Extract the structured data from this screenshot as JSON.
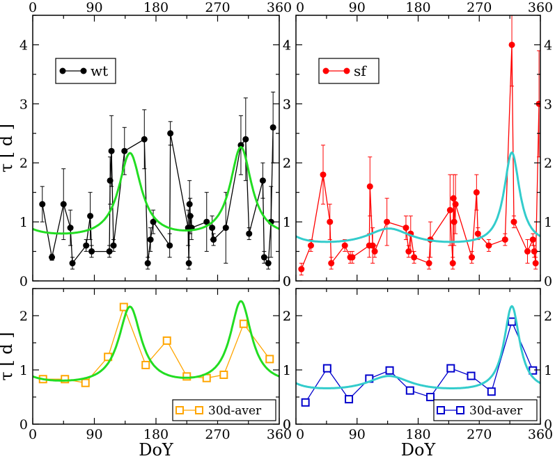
{
  "chart_data": [
    {
      "type": "scatter",
      "panel": "top-left",
      "title": "",
      "xlabel": "",
      "ylabel": "τ [ d ]",
      "xlim": [
        0,
        360
      ],
      "ylim": [
        0,
        4.5
      ],
      "xticks": [
        0,
        90,
        180,
        270,
        360
      ],
      "yticks": [
        0,
        1,
        2,
        3,
        4
      ],
      "legend": {
        "label": "wt",
        "position": "top-left"
      },
      "series": [
        {
          "name": "wt",
          "color": "#000000",
          "marker": "circle",
          "points": [
            [
              14,
              1.3,
              0.3
            ],
            [
              28,
              0.4,
              0.05
            ],
            [
              45,
              1.3,
              0.6
            ],
            [
              55,
              0.9,
              0.3
            ],
            [
              58,
              0.3,
              0.1
            ],
            [
              78,
              0.6,
              0.1
            ],
            [
              84,
              1.1,
              0.4
            ],
            [
              86,
              0.5,
              0.1
            ],
            [
              112,
              0.5,
              0.1
            ],
            [
              113,
              1.7,
              0.4
            ],
            [
              115,
              2.2,
              0.6
            ],
            [
              118,
              0.6,
              0.1
            ],
            [
              134,
              2.2,
              0.4
            ],
            [
              163,
              2.4,
              0.5
            ],
            [
              168,
              0.3,
              0.1
            ],
            [
              172,
              0.7,
              0.2
            ],
            [
              176,
              1.0,
              0.2
            ],
            [
              200,
              0.6,
              0.2
            ],
            [
              201,
              2.5,
              0.2
            ],
            [
              227,
              0.9,
              0.3
            ],
            [
              228,
              0.3,
              0.1
            ],
            [
              229,
              1.3,
              0.4
            ],
            [
              230,
              1.1,
              0.3
            ],
            [
              232,
              0.9,
              0.2
            ],
            [
              254,
              1.0,
              0.5
            ],
            [
              262,
              0.9,
              0.2
            ],
            [
              264,
              0.7,
              0.1
            ],
            [
              282,
              0.9,
              0.6
            ],
            [
              304,
              2.3,
              0.5
            ],
            [
              311,
              2.4,
              0.7
            ],
            [
              316,
              0.8,
              0.1
            ],
            [
              336,
              1.7,
              0.3
            ],
            [
              338,
              0.4,
              0.1
            ],
            [
              344,
              0.3,
              0.1
            ],
            [
              348,
              1.0,
              0.6
            ],
            [
              351,
              2.6,
              0.6
            ]
          ]
        },
        {
          "name": "fit",
          "color": "#22dd22",
          "style": "line",
          "model": {
            "base": 0.67,
            "peaks": [
              [
                142,
                1.45,
                20
              ],
              [
                304,
                1.55,
                19
              ]
            ],
            "period": 360
          }
        }
      ]
    },
    {
      "type": "scatter",
      "panel": "top-right",
      "xlabel": "",
      "ylabel": "",
      "xlim": [
        0,
        360
      ],
      "ylim": [
        0,
        4.5
      ],
      "xticks": [
        0,
        90,
        180,
        270,
        360
      ],
      "yticks": [
        0,
        1,
        2,
        3,
        4
      ],
      "legend": {
        "label": "sf",
        "position": "top-left"
      },
      "series": [
        {
          "name": "sf",
          "color": "#ff0000",
          "marker": "circle",
          "points": [
            [
              8,
              0.2,
              0.1
            ],
            [
              22,
              0.6,
              0.1
            ],
            [
              40,
              1.8,
              0.5
            ],
            [
              50,
              1.0,
              0.3
            ],
            [
              52,
              0.3,
              0.1
            ],
            [
              72,
              0.6,
              0.1
            ],
            [
              80,
              0.4,
              0.1
            ],
            [
              83,
              0.4,
              0.1
            ],
            [
              108,
              0.6,
              0.2
            ],
            [
              109,
              1.6,
              0.5
            ],
            [
              113,
              0.6,
              0.3
            ],
            [
              116,
              0.5,
              0.1
            ],
            [
              134,
              1.0,
              0.4
            ],
            [
              162,
              0.9,
              0.2
            ],
            [
              166,
              0.5,
              0.1
            ],
            [
              169,
              0.8,
              0.3
            ],
            [
              174,
              0.4,
              0.1
            ],
            [
              196,
              0.3,
              0.1
            ],
            [
              198,
              0.7,
              0.3
            ],
            [
              227,
              1.2,
              0.6
            ],
            [
              231,
              0.3,
              0.1
            ],
            [
              232,
              1.4,
              0.4
            ],
            [
              233,
              1.0,
              0.4
            ],
            [
              235,
              1.3,
              0.5
            ],
            [
              259,
              0.4,
              0.1
            ],
            [
              266,
              1.5,
              0.3
            ],
            [
              268,
              0.8,
              0.1
            ],
            [
              284,
              0.6,
              0.1
            ],
            [
              308,
              0.7,
              0.1
            ],
            [
              318,
              4.0,
              0.7
            ],
            [
              321,
              1.0,
              0.1
            ],
            [
              341,
              0.5,
              0.2
            ],
            [
              349,
              0.7,
              0.1
            ],
            [
              351,
              0.5,
              0.1
            ],
            [
              353,
              0.3,
              0.1
            ],
            [
              358,
              3.0,
              0.9
            ]
          ]
        },
        {
          "name": "fit",
          "color": "#33cccc",
          "style": "line",
          "model": {
            "base": 0.56,
            "peaks": [
              [
                137,
                0.3,
                40
              ],
              [
                318,
                1.58,
                14
              ]
            ],
            "period": 360
          }
        }
      ]
    },
    {
      "type": "line",
      "panel": "bottom-left",
      "xlabel": "DoY",
      "ylabel": "τ [ d ]",
      "xlim": [
        0,
        360
      ],
      "ylim": [
        0,
        2.5
      ],
      "xticks": [
        0,
        90,
        180,
        270,
        360
      ],
      "yticks": [
        0,
        1,
        2
      ],
      "legend": {
        "label": "30d-aver",
        "position": "bottom-right"
      },
      "series": [
        {
          "name": "30d-aver",
          "color": "#ffa500",
          "marker": "open-square",
          "x": [
            15,
            47,
            77,
            110,
            133,
            165,
            196,
            225,
            254,
            279,
            308,
            346
          ],
          "values": [
            0.83,
            0.83,
            0.76,
            1.24,
            2.16,
            1.09,
            1.54,
            0.88,
            0.85,
            0.91,
            1.85,
            1.2
          ]
        },
        {
          "name": "fit",
          "color": "#22dd22",
          "style": "line",
          "model": {
            "base": 0.67,
            "peaks": [
              [
                142,
                1.45,
                20
              ],
              [
                304,
                1.55,
                19
              ]
            ],
            "period": 360
          }
        }
      ]
    },
    {
      "type": "line",
      "panel": "bottom-right",
      "xlabel": "DoY",
      "ylabel": "",
      "xlim": [
        0,
        360
      ],
      "ylim": [
        0,
        2.5
      ],
      "xticks": [
        0,
        90,
        180,
        270,
        360
      ],
      "yticks": [
        0,
        1,
        2
      ],
      "legend": {
        "label": "30d-aver",
        "position": "bottom-right"
      },
      "series": [
        {
          "name": "30d-aver",
          "color": "#0000cc",
          "marker": "open-square",
          "x": [
            14,
            46,
            78,
            108,
            138,
            168,
            198,
            228,
            258,
            288,
            318,
            349
          ],
          "values": [
            0.4,
            1.03,
            0.46,
            0.84,
            0.99,
            0.62,
            0.5,
            1.03,
            0.89,
            0.6,
            1.89,
            0.99
          ]
        },
        {
          "name": "fit",
          "color": "#33cccc",
          "style": "line",
          "model": {
            "base": 0.56,
            "peaks": [
              [
                137,
                0.3,
                40
              ],
              [
                318,
                1.58,
                14
              ]
            ],
            "period": 360
          }
        }
      ]
    }
  ]
}
